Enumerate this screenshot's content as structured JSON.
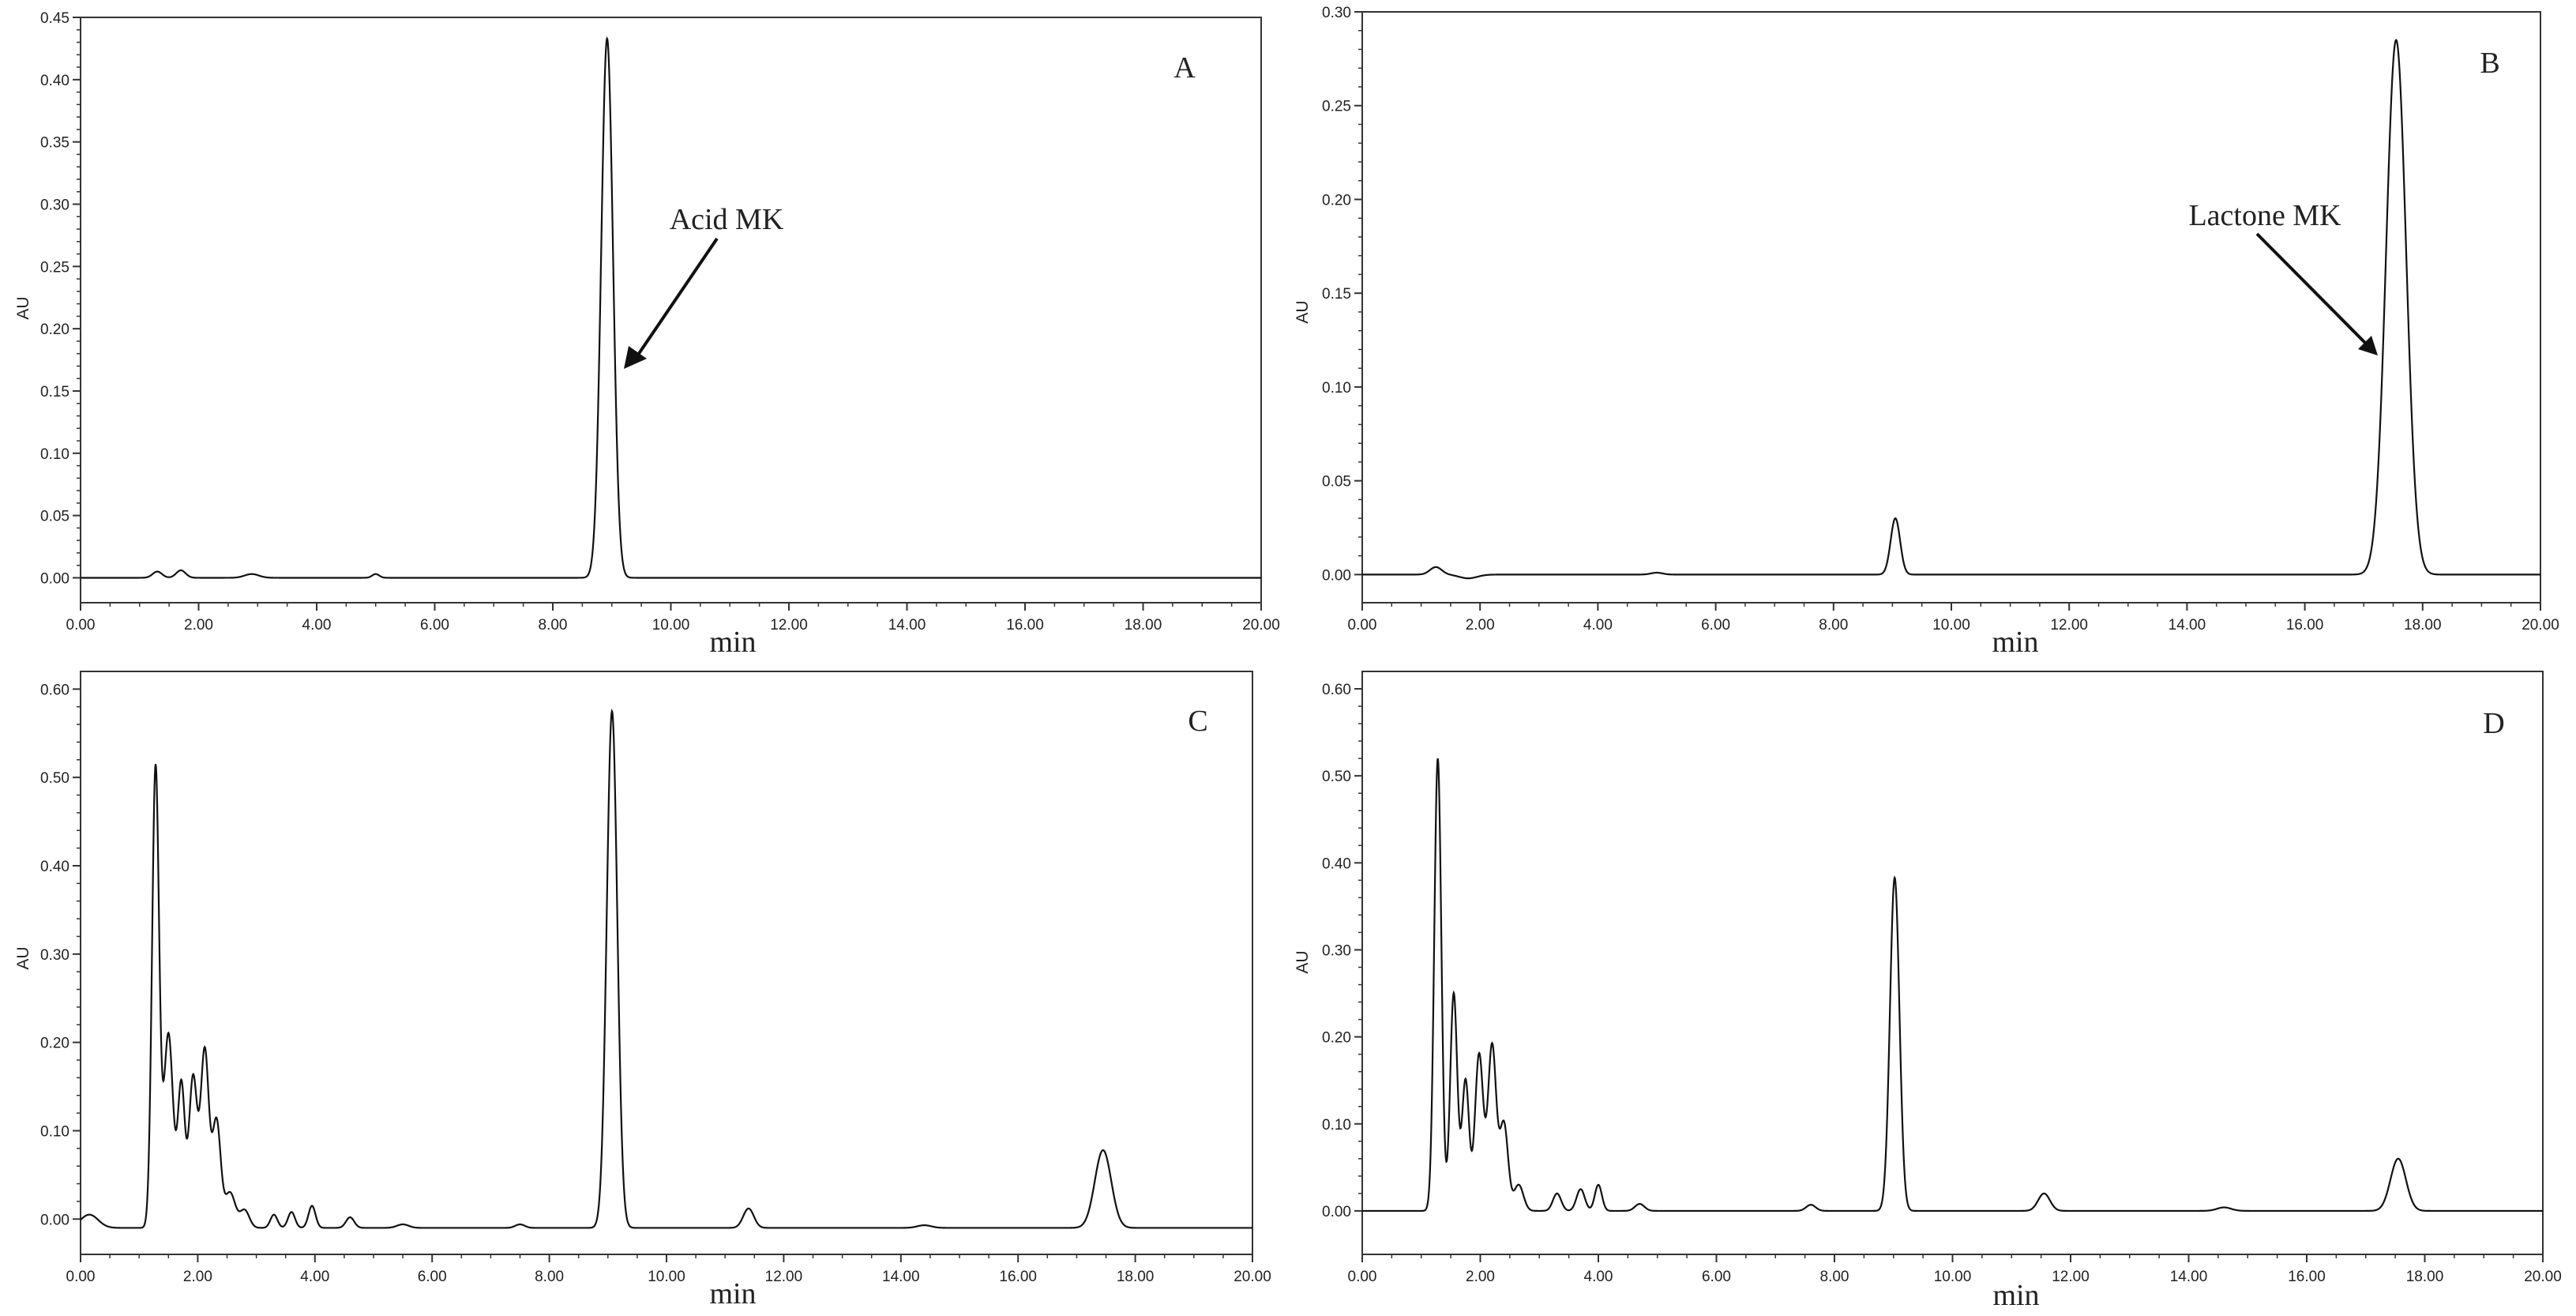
{
  "chart_data": [
    {
      "type": "line",
      "panel_label": "A",
      "xlabel": "min",
      "ylabel": "AU",
      "xlim": [
        0,
        20
      ],
      "ylim": [
        -0.02,
        0.45
      ],
      "x_ticks": [
        "0.00",
        "2.00",
        "4.00",
        "6.00",
        "8.00",
        "10.00",
        "12.00",
        "14.00",
        "16.00",
        "18.00",
        "20.00"
      ],
      "y_ticks": [
        "0.00",
        "0.05",
        "0.10",
        "0.15",
        "0.20",
        "0.25",
        "0.30",
        "0.35",
        "0.40",
        "0.45"
      ],
      "baseline": 0.0,
      "peaks": [
        [
          1.3,
          0.005,
          0.08
        ],
        [
          1.7,
          0.006,
          0.08
        ],
        [
          2.9,
          0.003,
          0.12
        ],
        [
          5.0,
          0.003,
          0.06
        ],
        [
          8.92,
          0.433,
          0.1
        ]
      ],
      "annotations": [
        {
          "text": "Acid MK",
          "x": 9.1,
          "y": 0.17
        }
      ]
    },
    {
      "type": "line",
      "panel_label": "B",
      "xlabel": "min",
      "ylabel": "AU",
      "xlim": [
        0,
        20
      ],
      "ylim": [
        -0.015,
        0.3
      ],
      "x_ticks": [
        "0.00",
        "2.00",
        "4.00",
        "6.00",
        "8.00",
        "10.00",
        "12.00",
        "14.00",
        "16.00",
        "18.00",
        "20.00"
      ],
      "y_ticks": [
        "0.00",
        "0.05",
        "0.10",
        "0.15",
        "0.20",
        "0.25",
        "0.30"
      ],
      "baseline": 0.0,
      "peaks": [
        [
          1.25,
          0.004,
          0.1
        ],
        [
          1.8,
          -0.002,
          0.15
        ],
        [
          5.0,
          0.001,
          0.1
        ],
        [
          9.05,
          0.03,
          0.08
        ],
        [
          17.55,
          0.285,
          0.17
        ]
      ],
      "annotations": [
        {
          "text": "Lactone  MK",
          "x": 17.3,
          "y": 0.118
        }
      ]
    },
    {
      "type": "line",
      "panel_label": "C",
      "xlabel": "min",
      "ylabel": "AU",
      "xlim": [
        0,
        20
      ],
      "ylim": [
        -0.04,
        0.62
      ],
      "x_ticks": [
        "0.00",
        "2.00",
        "4.00",
        "6.00",
        "8.00",
        "10.00",
        "12.00",
        "14.00",
        "16.00",
        "18.00",
        "20.00"
      ],
      "y_ticks": [
        "0.00",
        "0.10",
        "0.20",
        "0.30",
        "0.40",
        "0.50",
        "0.60"
      ],
      "baseline": -0.01,
      "peaks": [
        [
          0.15,
          0.015,
          0.15
        ],
        [
          1.28,
          0.52,
          0.06
        ],
        [
          1.5,
          0.22,
          0.08
        ],
        [
          1.72,
          0.16,
          0.06
        ],
        [
          1.92,
          0.17,
          0.07
        ],
        [
          2.12,
          0.2,
          0.07
        ],
        [
          2.32,
          0.12,
          0.07
        ],
        [
          2.55,
          0.04,
          0.09
        ],
        [
          2.8,
          0.02,
          0.08
        ],
        [
          3.3,
          0.015,
          0.06
        ],
        [
          3.6,
          0.018,
          0.06
        ],
        [
          3.95,
          0.025,
          0.06
        ],
        [
          4.6,
          0.012,
          0.07
        ],
        [
          5.5,
          0.004,
          0.1
        ],
        [
          7.5,
          0.004,
          0.08
        ],
        [
          9.07,
          0.585,
          0.09
        ],
        [
          11.4,
          0.022,
          0.09
        ],
        [
          14.4,
          0.003,
          0.12
        ],
        [
          17.45,
          0.088,
          0.14
        ]
      ],
      "annotations": []
    },
    {
      "type": "line",
      "panel_label": "D",
      "xlabel": "min",
      "ylabel": "AU",
      "xlim": [
        0,
        20
      ],
      "ylim": [
        -0.05,
        0.62
      ],
      "x_ticks": [
        "0.00",
        "2.00",
        "4.00",
        "6.00",
        "8.00",
        "10.00",
        "12.00",
        "14.00",
        "16.00",
        "18.00",
        "20.00"
      ],
      "y_ticks": [
        "0.00",
        "0.10",
        "0.20",
        "0.30",
        "0.40",
        "0.50",
        "0.60"
      ],
      "baseline": 0.0,
      "peaks": [
        [
          1.28,
          0.52,
          0.06
        ],
        [
          1.55,
          0.25,
          0.06
        ],
        [
          1.75,
          0.15,
          0.06
        ],
        [
          1.98,
          0.18,
          0.07
        ],
        [
          2.2,
          0.19,
          0.07
        ],
        [
          2.4,
          0.1,
          0.07
        ],
        [
          2.65,
          0.03,
          0.08
        ],
        [
          3.3,
          0.02,
          0.07
        ],
        [
          3.7,
          0.025,
          0.07
        ],
        [
          4.0,
          0.03,
          0.06
        ],
        [
          4.7,
          0.008,
          0.08
        ],
        [
          7.6,
          0.007,
          0.08
        ],
        [
          9.02,
          0.383,
          0.08
        ],
        [
          11.55,
          0.02,
          0.1
        ],
        [
          14.6,
          0.004,
          0.12
        ],
        [
          17.55,
          0.06,
          0.13
        ]
      ],
      "annotations": []
    }
  ]
}
